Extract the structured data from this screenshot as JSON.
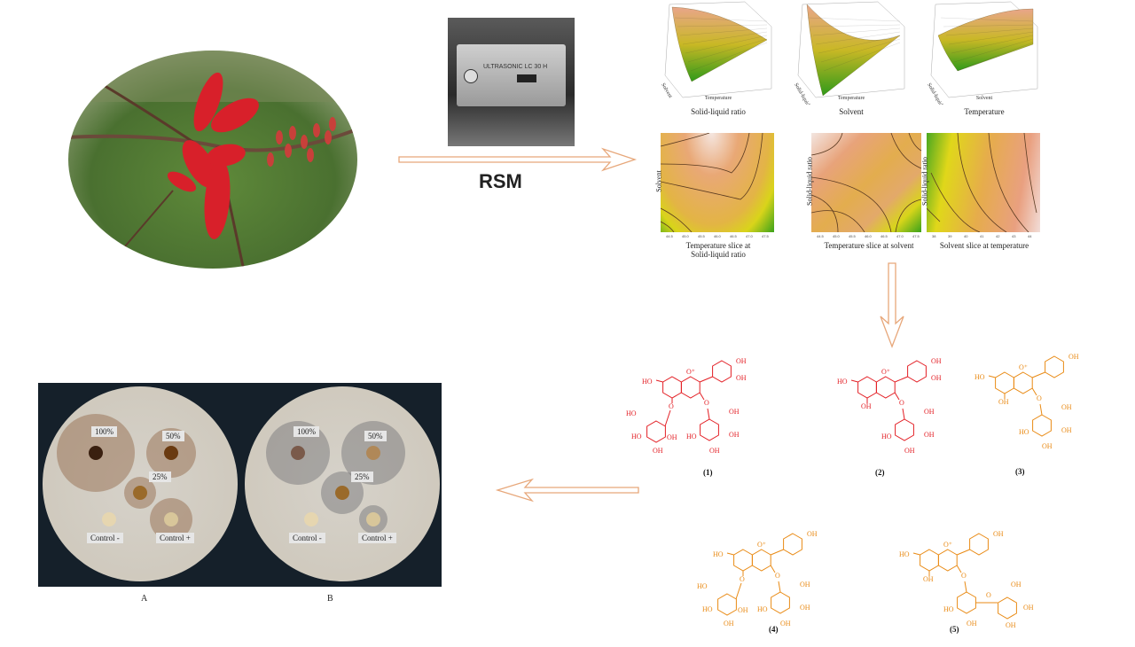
{
  "flower_photo": {
    "icon": "flower-photo"
  },
  "ultrasonic_photo": {
    "device_text": "ULTRASONIC  LC 30 H"
  },
  "method_label": "RSM",
  "surface_plots": [
    {
      "caption": "Solid-liquid ratio",
      "x_axis": "Temperature",
      "y_axis": "Solvent"
    },
    {
      "caption": "Solvent",
      "x_axis": "Temperature",
      "y_axis": "Solid-liquid ratio"
    },
    {
      "caption": "Temperature",
      "x_axis": "Solvent",
      "y_axis": "Solid-liquid ratio"
    }
  ],
  "contour_plots": [
    {
      "caption_line1": "Temperature slice at",
      "caption_line2": "Solid-liquid ratio",
      "y_axis": "Solvent",
      "x_ticks": [
        "44.5",
        "45.0",
        "45.5",
        "46.0",
        "46.5",
        "47.0",
        "47.5"
      ]
    },
    {
      "caption_line1": "Temperature slice at solvent",
      "caption_line2": "",
      "y_axis": "Solid-liquid ratio",
      "x_ticks": [
        "44.5",
        "45.0",
        "45.5",
        "46.0",
        "46.5",
        "47.0",
        "47.5"
      ]
    },
    {
      "caption_line1": "Solvent slice at temperature",
      "caption_line2": "",
      "y_axis": "Solid-liquid ratio",
      "x_ticks": [
        "38",
        "39",
        "40",
        "41",
        "42",
        "43",
        "44"
      ]
    }
  ],
  "colors": {
    "red_compound": "#e31e24",
    "orange_compound": "#e98a14",
    "arrow": "#e7a77a"
  },
  "molecules": [
    {
      "label": "(1)",
      "color": "#e31e24",
      "atoms": [
        "HO",
        "O⁺",
        "OH",
        "OH",
        "O",
        "O",
        "HO",
        "HO",
        "OH",
        "OH",
        "OH",
        "OH",
        "OH",
        "HO"
      ]
    },
    {
      "label": "(2)",
      "color": "#e31e24",
      "atoms": [
        "HO",
        "O⁺",
        "OH",
        "OH",
        "OH",
        "O",
        "OH",
        "OH",
        "OH",
        "HO"
      ]
    },
    {
      "label": "(3)",
      "color": "#e98a14",
      "atoms": [
        "HO",
        "O⁺",
        "OH",
        "OH",
        "O",
        "OH",
        "OH",
        "OH",
        "HO"
      ]
    },
    {
      "label": "(4)",
      "color": "#e98a14",
      "atoms": [
        "HO",
        "O⁺",
        "OH",
        "O",
        "O",
        "HO",
        "HO",
        "OH",
        "OH",
        "OH",
        "OH",
        "OH",
        "HO"
      ]
    },
    {
      "label": "(5)",
      "color": "#e98a14",
      "atoms": [
        "HO",
        "O⁺",
        "OH",
        "OH",
        "O",
        "OH",
        "HO",
        "O",
        "OH",
        "OH",
        "OH"
      ]
    }
  ],
  "plates": [
    {
      "label": "A",
      "wells": [
        "100%",
        "50%",
        "25%",
        "Control -",
        "Control +"
      ]
    },
    {
      "label": "B",
      "wells": [
        "100%",
        "50%",
        "25%",
        "Control -",
        "Control +"
      ]
    }
  ]
}
